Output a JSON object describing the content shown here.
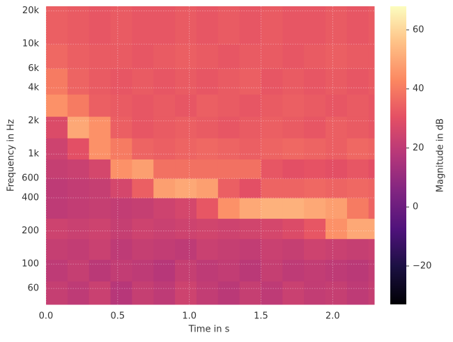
{
  "chart_data": {
    "type": "heatmap",
    "xlabel": "Time in s",
    "ylabel": "Frequency in Hz",
    "colorbar_label": "Magnitude in dB",
    "colormap": "magma",
    "yscale": "log",
    "grid": true,
    "xlim": [
      0,
      2.29
    ],
    "ylim": [
      43,
      22050
    ],
    "clim": [
      -33,
      68
    ],
    "xticks": [
      {
        "value": 0,
        "label": "0.0"
      },
      0.5,
      {
        "value": 1,
        "label": "1.0"
      },
      1.5,
      {
        "value": 2,
        "label": "2.0"
      }
    ],
    "yticks": [
      60,
      100,
      200,
      400,
      600,
      {
        "value": 1000,
        "label": "1k"
      },
      {
        "value": 2000,
        "label": "2k"
      },
      {
        "value": 4000,
        "label": "4k"
      },
      {
        "value": 6000,
        "label": "6k"
      },
      {
        "value": 10000,
        "label": "10k"
      },
      {
        "value": 20000,
        "label": "20k"
      }
    ],
    "cticks": [
      {
        "value": -20,
        "label": "−20"
      },
      0,
      20,
      40,
      60
    ],
    "xbins": [
      0,
      0.15,
      0.3,
      0.45,
      0.6,
      0.75,
      0.9,
      1.05,
      1.2,
      1.35,
      1.5,
      1.65,
      1.8,
      1.95,
      2.1,
      2.25,
      2.29
    ],
    "ybins": [
      43,
      70,
      110,
      170,
      260,
      400,
      600,
      900,
      1400,
      2200,
      3500,
      6000,
      10000,
      22050
    ],
    "values": [
      [
        22,
        20,
        23,
        18,
        22,
        20,
        24,
        21,
        19,
        22,
        20,
        23,
        21,
        22,
        20,
        22
      ],
      [
        20,
        22,
        19,
        21,
        20,
        18,
        22,
        20,
        21,
        19,
        22,
        20,
        21,
        20,
        19,
        21
      ],
      [
        22,
        21,
        23,
        20,
        22,
        21,
        20,
        23,
        22,
        21,
        23,
        22,
        24,
        23,
        22,
        23
      ],
      [
        24,
        23,
        24,
        22,
        24,
        23,
        24,
        25,
        24,
        25,
        26,
        28,
        32,
        45,
        50,
        50
      ],
      [
        20,
        21,
        22,
        21,
        22,
        24,
        26,
        32,
        45,
        50,
        52,
        52,
        50,
        48,
        40,
        35
      ],
      [
        20,
        21,
        22,
        26,
        34,
        48,
        50,
        48,
        34,
        30,
        35,
        35,
        36,
        35,
        36,
        35
      ],
      [
        22,
        23,
        26,
        45,
        48,
        38,
        38,
        38,
        38,
        38,
        32,
        30,
        31,
        30,
        32,
        30
      ],
      [
        24,
        30,
        45,
        40,
        35,
        34,
        35,
        36,
        35,
        34,
        35,
        36,
        35,
        34,
        36,
        35
      ],
      [
        28,
        50,
        45,
        34,
        32,
        33,
        34,
        33,
        32,
        33,
        34,
        33,
        32,
        34,
        33,
        32
      ],
      [
        45,
        40,
        34,
        33,
        32,
        33,
        32,
        34,
        33,
        32,
        33,
        34,
        33,
        32,
        33,
        32
      ],
      [
        40,
        35,
        33,
        32,
        33,
        32,
        33,
        32,
        33,
        34,
        32,
        33,
        32,
        33,
        32,
        33
      ],
      [
        36,
        34,
        33,
        33,
        32,
        33,
        34,
        33,
        32,
        33,
        33,
        32,
        33,
        34,
        33,
        33
      ],
      [
        34,
        33,
        32,
        33,
        32,
        32,
        33,
        32,
        33,
        32,
        33,
        32,
        32,
        33,
        32,
        33
      ]
    ]
  }
}
